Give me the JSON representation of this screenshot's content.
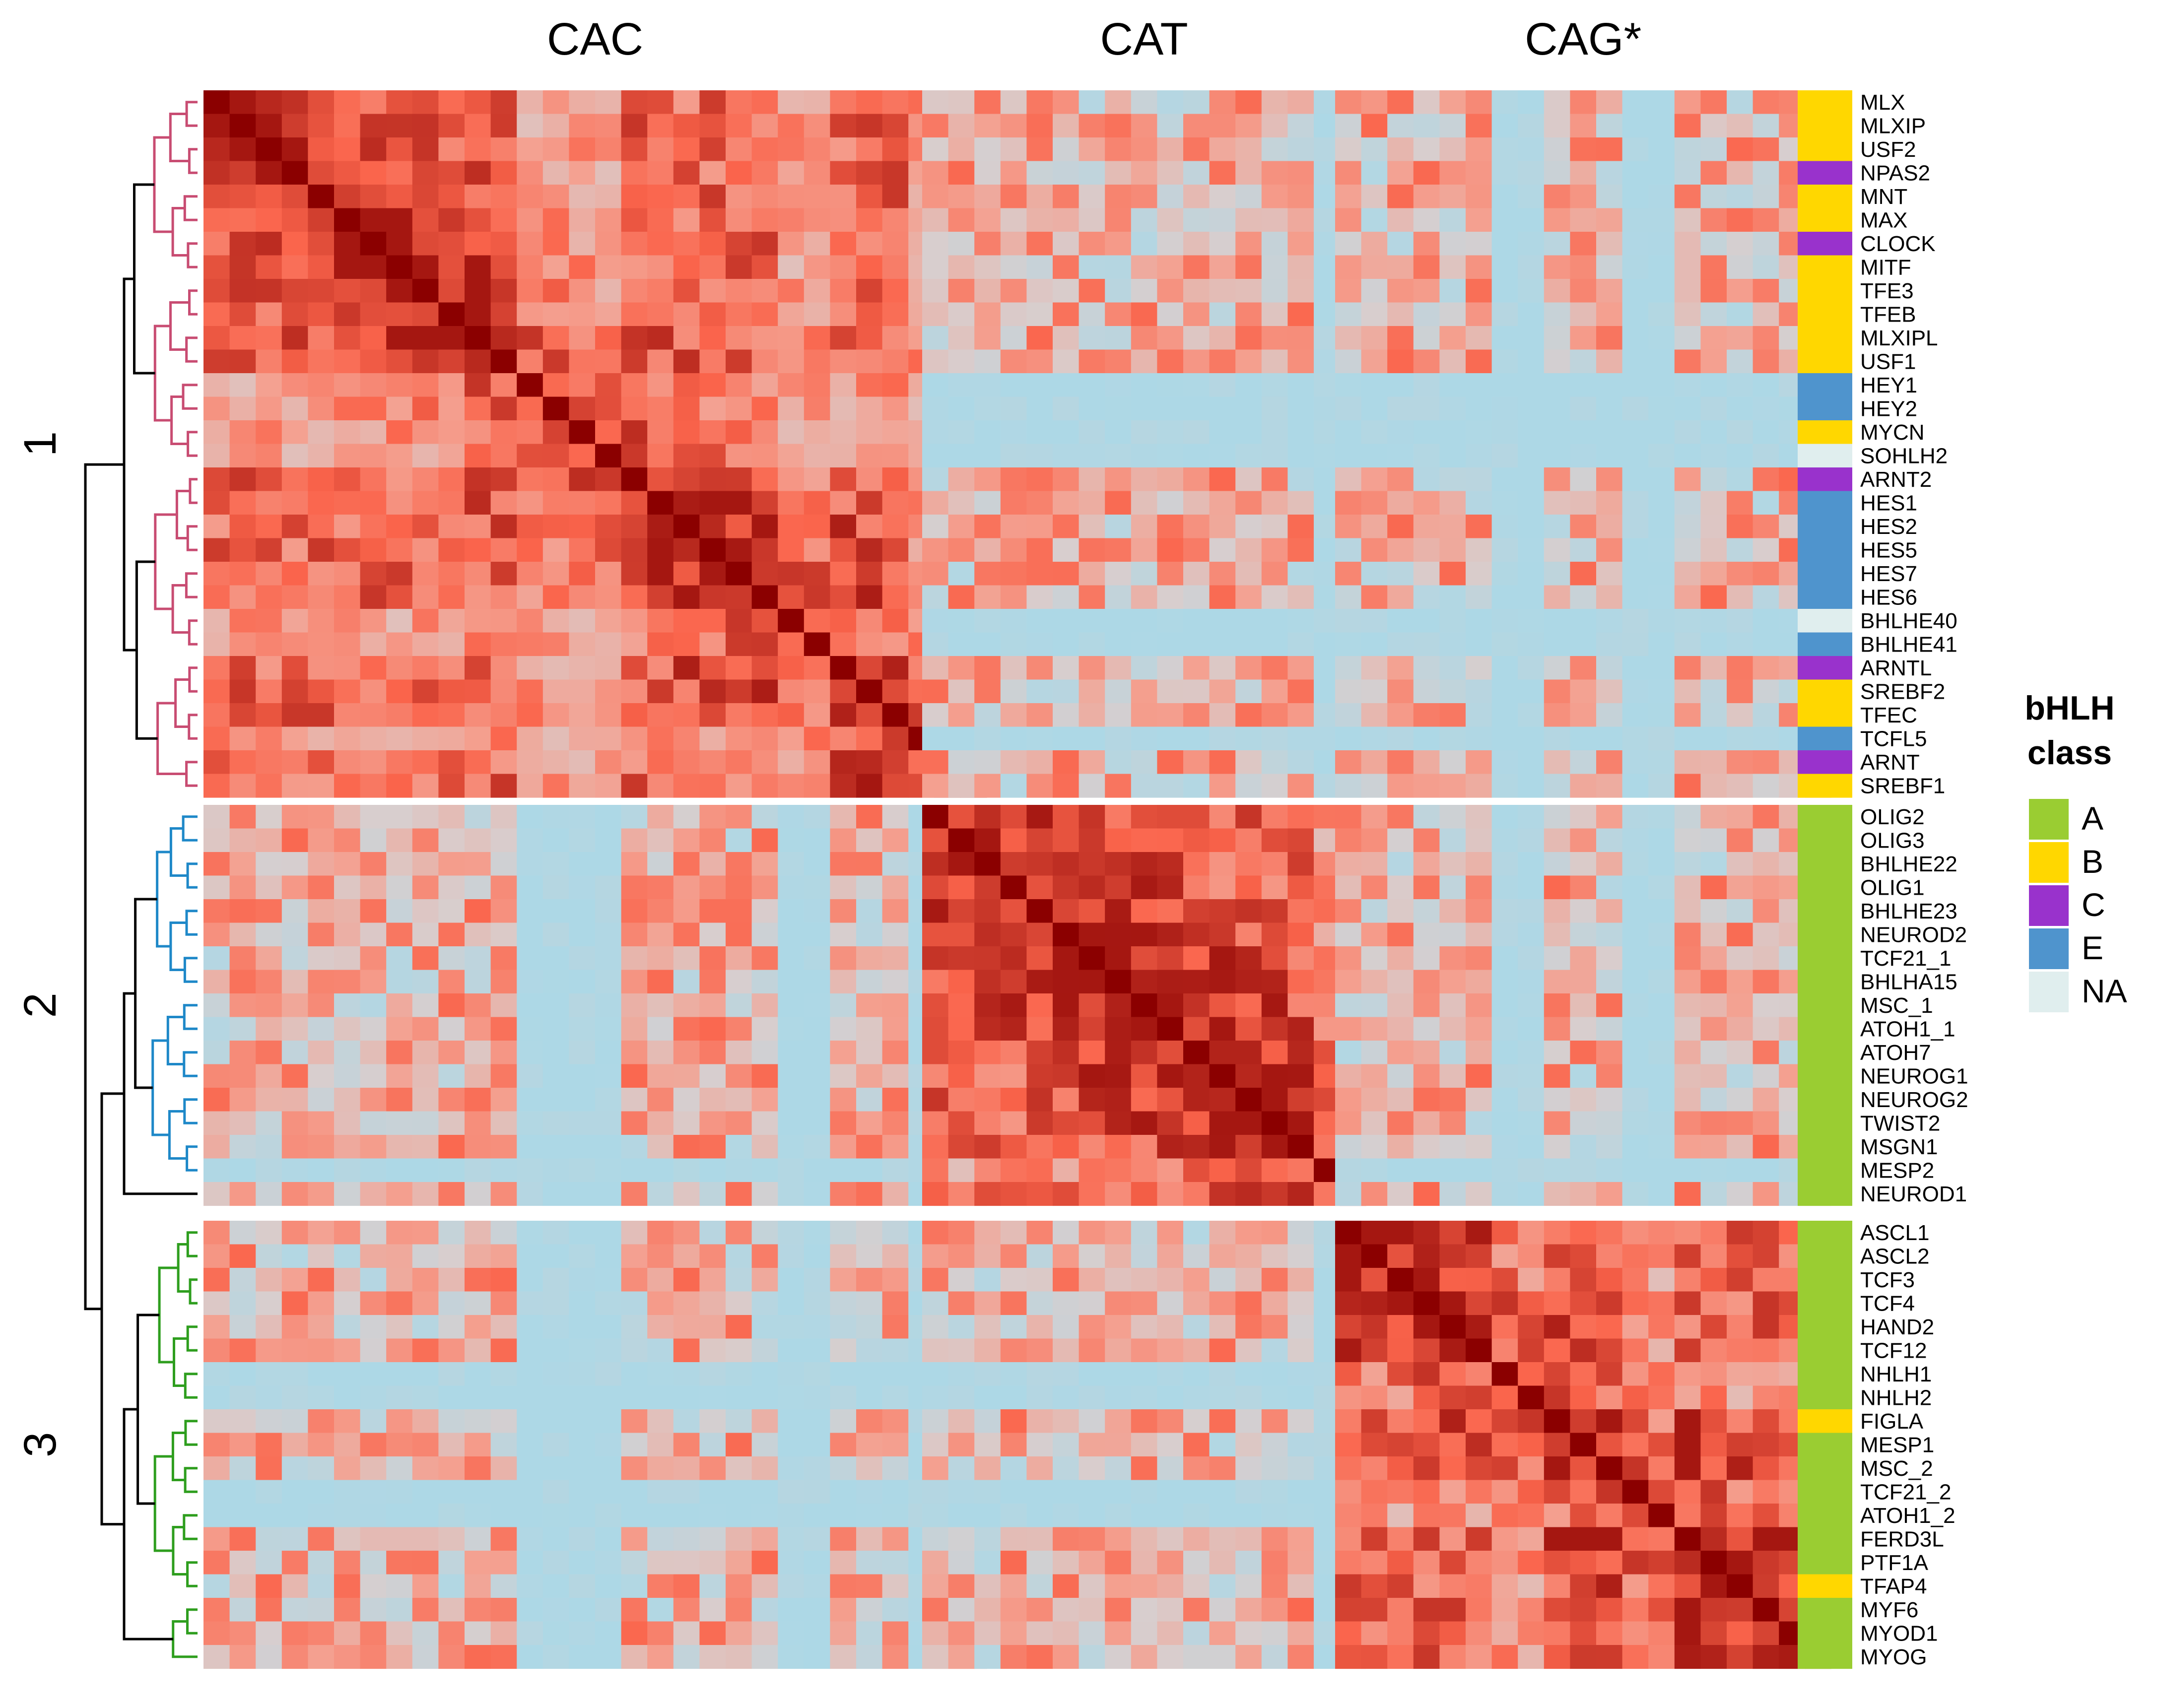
{
  "chart_data": {
    "type": "heatmap",
    "title": "",
    "column_groups": [
      "CAC",
      "CAT",
      "CAG*"
    ],
    "row_clusters": [
      "1",
      "2",
      "3"
    ],
    "legend": {
      "title_line1": "bHLH",
      "title_line2": "class",
      "placement": "right",
      "entries": [
        {
          "label": "A",
          "color": "#9ACD32"
        },
        {
          "label": "B",
          "color": "#FFD700"
        },
        {
          "label": "C",
          "color": "#9932CC"
        },
        {
          "label": "E",
          "color": "#4F94CD"
        },
        {
          "label": "NA",
          "color": "#E0EEEE"
        }
      ]
    },
    "dendrogram_colors": {
      "cluster1": "#C84C72",
      "cluster2": "#1E88C8",
      "cluster3": "#2E9E1E",
      "root": "#000000"
    },
    "color_scale": {
      "low": "#ADD8E6",
      "mid": "#F4A090",
      "high": "#8B0000"
    },
    "clusters": [
      {
        "id": "1",
        "rows": [
          {
            "gene": "MLX",
            "class": "B"
          },
          {
            "gene": "MLXIP",
            "class": "B"
          },
          {
            "gene": "USF2",
            "class": "B"
          },
          {
            "gene": "NPAS2",
            "class": "C"
          },
          {
            "gene": "MNT",
            "class": "B"
          },
          {
            "gene": "MAX",
            "class": "B"
          },
          {
            "gene": "CLOCK",
            "class": "C"
          },
          {
            "gene": "MITF",
            "class": "B"
          },
          {
            "gene": "TFE3",
            "class": "B"
          },
          {
            "gene": "TFEB",
            "class": "B"
          },
          {
            "gene": "MLXIPL",
            "class": "B"
          },
          {
            "gene": "USF1",
            "class": "B"
          },
          {
            "gene": "HEY1",
            "class": "E"
          },
          {
            "gene": "HEY2",
            "class": "E"
          },
          {
            "gene": "MYCN",
            "class": "B"
          },
          {
            "gene": "SOHLH2",
            "class": "NA"
          },
          {
            "gene": "ARNT2",
            "class": "C"
          },
          {
            "gene": "HES1",
            "class": "E"
          },
          {
            "gene": "HES2",
            "class": "E"
          },
          {
            "gene": "HES5",
            "class": "E"
          },
          {
            "gene": "HES7",
            "class": "E"
          },
          {
            "gene": "HES6",
            "class": "E"
          },
          {
            "gene": "BHLHE40",
            "class": "NA"
          },
          {
            "gene": "BHLHE41",
            "class": "E"
          },
          {
            "gene": "ARNTL",
            "class": "C"
          },
          {
            "gene": "SREBF2",
            "class": "B"
          },
          {
            "gene": "TFEC",
            "class": "B"
          },
          {
            "gene": "TCFL5",
            "class": "E"
          },
          {
            "gene": "ARNT",
            "class": "C"
          },
          {
            "gene": "SREBF1",
            "class": "B"
          }
        ]
      },
      {
        "id": "2",
        "rows": [
          {
            "gene": "OLIG2",
            "class": "A"
          },
          {
            "gene": "OLIG3",
            "class": "A"
          },
          {
            "gene": "BHLHE22",
            "class": "A"
          },
          {
            "gene": "OLIG1",
            "class": "A"
          },
          {
            "gene": "BHLHE23",
            "class": "A"
          },
          {
            "gene": "NEUROD2",
            "class": "A"
          },
          {
            "gene": "TCF21_1",
            "class": "A"
          },
          {
            "gene": "BHLHA15",
            "class": "A"
          },
          {
            "gene": "MSC_1",
            "class": "A"
          },
          {
            "gene": "ATOH1_1",
            "class": "A"
          },
          {
            "gene": "ATOH7",
            "class": "A"
          },
          {
            "gene": "NEUROG1",
            "class": "A"
          },
          {
            "gene": "NEUROG2",
            "class": "A"
          },
          {
            "gene": "TWIST2",
            "class": "A"
          },
          {
            "gene": "MSGN1",
            "class": "A"
          },
          {
            "gene": "MESP2",
            "class": "A"
          },
          {
            "gene": "NEUROD1",
            "class": "A"
          }
        ]
      },
      {
        "id": "3",
        "rows": [
          {
            "gene": "ASCL1",
            "class": "A"
          },
          {
            "gene": "ASCL2",
            "class": "A"
          },
          {
            "gene": "TCF3",
            "class": "A"
          },
          {
            "gene": "TCF4",
            "class": "A"
          },
          {
            "gene": "HAND2",
            "class": "A"
          },
          {
            "gene": "TCF12",
            "class": "A"
          },
          {
            "gene": "NHLH1",
            "class": "A"
          },
          {
            "gene": "NHLH2",
            "class": "A"
          },
          {
            "gene": "FIGLA",
            "class": "B"
          },
          {
            "gene": "MESP1",
            "class": "A"
          },
          {
            "gene": "MSC_2",
            "class": "A"
          },
          {
            "gene": "TCF21_2",
            "class": "A"
          },
          {
            "gene": "ATOH1_2",
            "class": "A"
          },
          {
            "gene": "FERD3L",
            "class": "A"
          },
          {
            "gene": "PTF1A",
            "class": "A"
          },
          {
            "gene": "TFAP4",
            "class": "B"
          },
          {
            "gene": "MYF6",
            "class": "A"
          },
          {
            "gene": "MYOD1",
            "class": "A"
          },
          {
            "gene": "MYOG",
            "class": "A"
          }
        ]
      }
    ],
    "similarity_model": {
      "diagonal": 1.0,
      "within_group_base": 0.62,
      "between_group_base": 0.32,
      "low_similarity_genes": [
        "HEY1",
        "HEY2",
        "MYCN",
        "SOHLH2",
        "BHLHE40",
        "BHLHE41",
        "TCFL5",
        "MESP2",
        "ATOH1_2",
        "TCF21_2",
        "NHLH1",
        "NHLH2"
      ],
      "low_similarity_value": 0.08
    }
  }
}
